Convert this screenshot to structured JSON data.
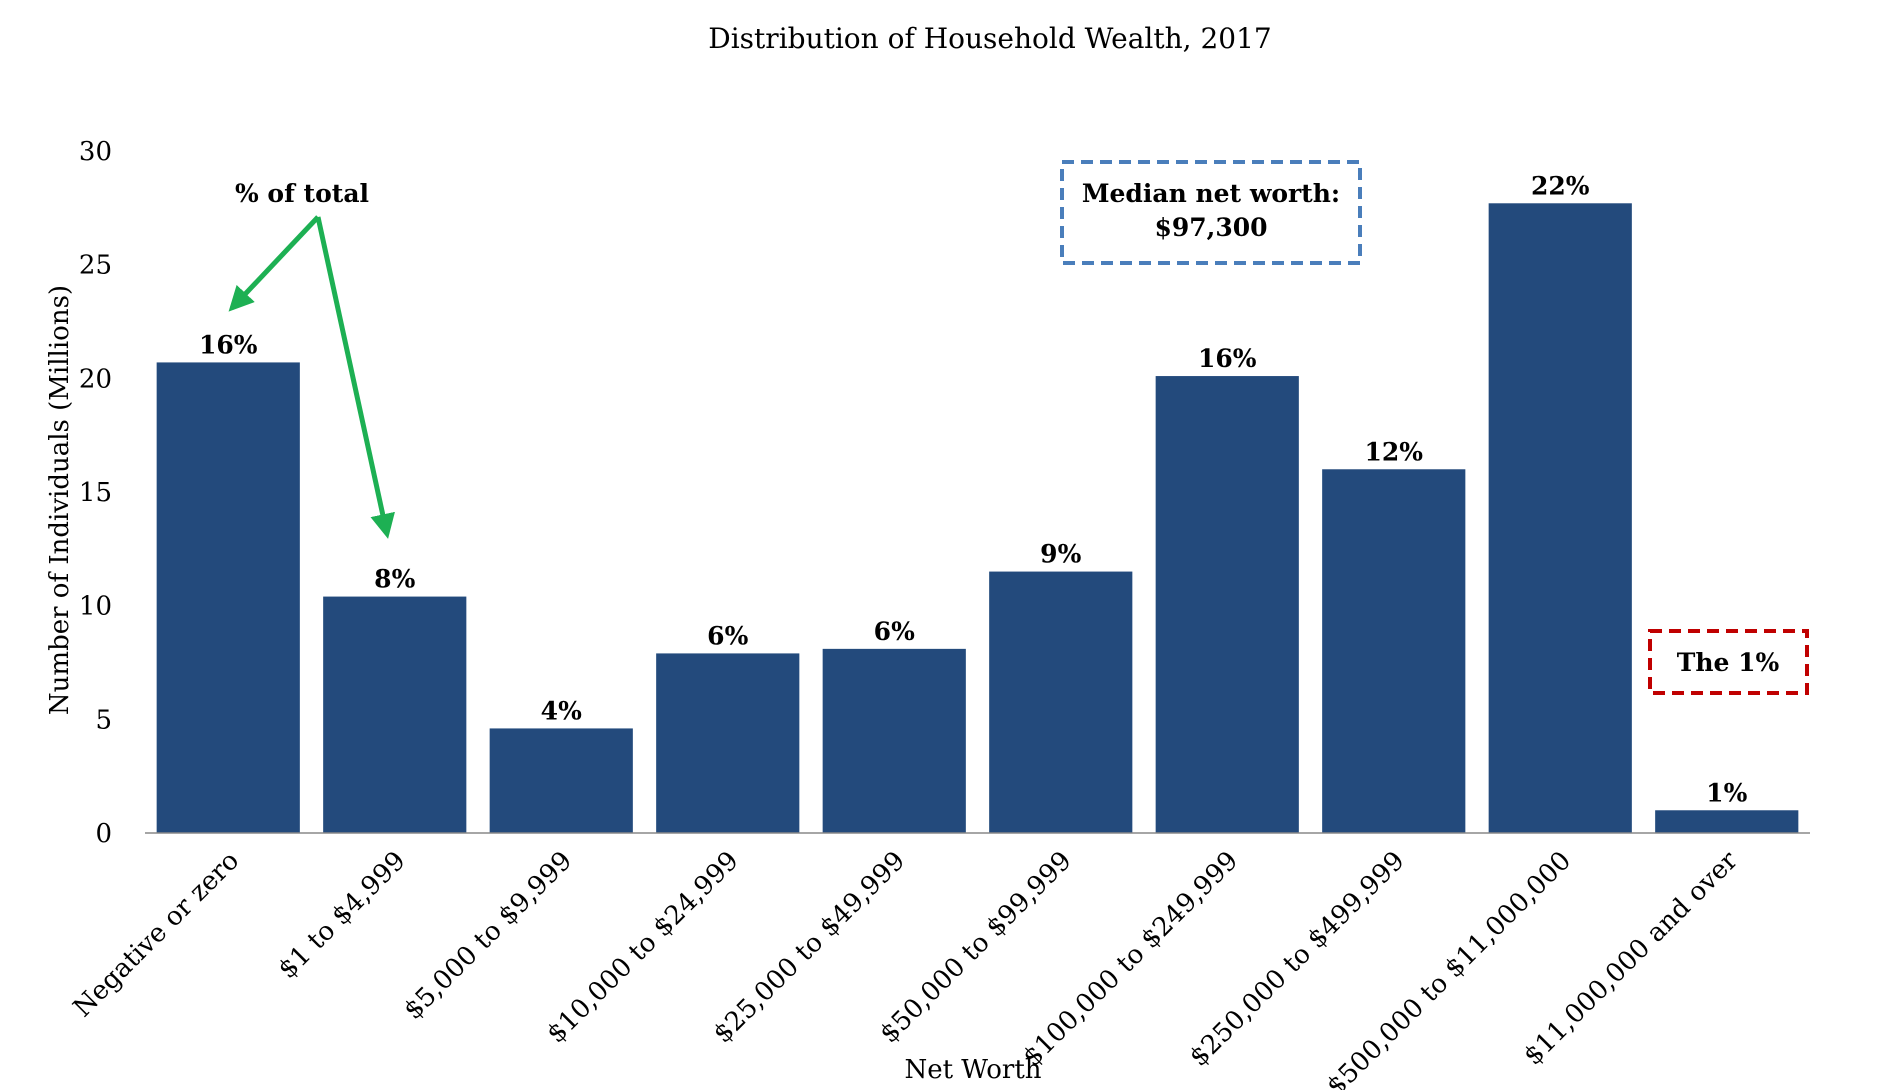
{
  "chart_data": {
    "type": "bar",
    "title": "Distribution of Household Wealth, 2017",
    "xlabel": "Net Worth",
    "ylabel": "Number of Individuals (Millions)",
    "ylim": [
      0,
      30
    ],
    "yticks": [
      "0",
      "5",
      "10",
      "15",
      "20",
      "25",
      "30"
    ],
    "grid": false,
    "legend": "none",
    "categories": [
      "Negative or zero",
      "$1 to $4,999",
      "$5,000 to $9,999",
      "$10,000 to $24,999",
      "$25,000 to $49,999",
      "$50,000 to $99,999",
      "$100,000 to $249,999",
      "$250,000 to $499,999",
      "$500,000 to $11,000,000",
      "$11,000,000 and over"
    ],
    "values": [
      20.7,
      10.4,
      4.6,
      7.9,
      8.1,
      11.5,
      20.1,
      16.0,
      27.7,
      1.0
    ],
    "data_labels": [
      "16%",
      "8%",
      "4%",
      "6%",
      "6%",
      "9%",
      "16%",
      "12%",
      "22%",
      "1%"
    ],
    "bar_color": "#234A7C",
    "annotations": {
      "pct_note": "% of total",
      "pct_note_color": "#1DB053",
      "median_line1": "Median net worth:",
      "median_line2": "$97,300",
      "median_box_color": "#4A7EBB",
      "top_pct": "The 1%",
      "top_pct_color": "#C00000"
    }
  }
}
